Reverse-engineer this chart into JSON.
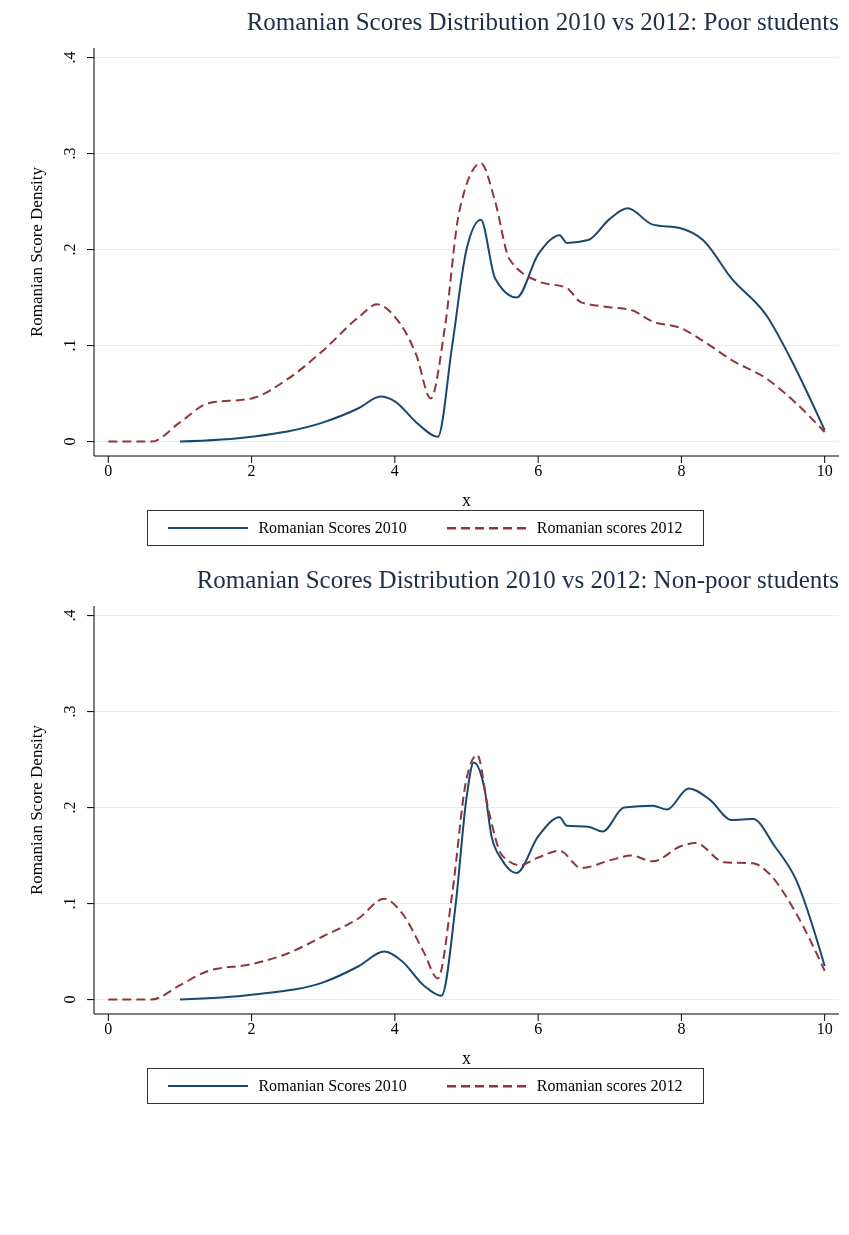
{
  "chart_data": [
    {
      "type": "line",
      "title": "Romanian Scores Distribution 2010 vs 2012: Poor students",
      "xlabel": "x",
      "ylabel": "Romanian Score Density",
      "xlim": [
        -0.2,
        10.2
      ],
      "xticks": [
        0,
        2,
        4,
        6,
        8,
        10
      ],
      "ylim": [
        -0.015,
        0.41
      ],
      "yticks": [
        0,
        {
          "value": 0.1,
          "label": ".1"
        },
        {
          "value": 0.2,
          "label": ".2"
        },
        {
          "value": 0.3,
          "label": ".3"
        },
        {
          "value": 0.4,
          "label": ".4"
        }
      ],
      "grid": "y",
      "legend": "bottom",
      "series": [
        {
          "name": "Romanian Scores 2010",
          "color": "#1a476f",
          "line_style": "solid",
          "x": [
            1,
            2,
            3,
            3.5,
            3.8,
            4,
            4.3,
            4.6,
            4.8,
            5,
            5.2,
            5.4,
            5.7,
            6,
            6.3,
            6.4,
            6.7,
            7,
            7.25,
            7.6,
            8,
            8.3,
            8.7,
            9.2,
            9.5,
            10
          ],
          "values": [
            0,
            0.005,
            0.02,
            0.035,
            0.047,
            0.042,
            0.02,
            0.005,
            0.1,
            0.2,
            0.231,
            0.17,
            0.15,
            0.195,
            0.215,
            0.207,
            0.21,
            0.232,
            0.243,
            0.226,
            0.222,
            0.21,
            0.17,
            0.13,
            0.09,
            0.012
          ]
        },
        {
          "name": "Romanian scores 2012",
          "color": "#90353b",
          "line_style": "dashed",
          "x": [
            0,
            0.6,
            1,
            1.4,
            2,
            2.5,
            3,
            3.5,
            3.75,
            4,
            4.3,
            4.5,
            4.7,
            4.9,
            5.2,
            5.4,
            5.6,
            6,
            6.4,
            6.6,
            7,
            7.3,
            7.6,
            8,
            8.3,
            8.7,
            9.2,
            9.6,
            10
          ],
          "values": [
            0,
            0,
            0.02,
            0.04,
            0.045,
            0.065,
            0.095,
            0.13,
            0.143,
            0.13,
            0.09,
            0.045,
            0.12,
            0.24,
            0.29,
            0.25,
            0.19,
            0.167,
            0.16,
            0.145,
            0.14,
            0.137,
            0.125,
            0.118,
            0.105,
            0.085,
            0.065,
            0.04,
            0.01
          ]
        }
      ]
    },
    {
      "type": "line",
      "title": "Romanian Scores Distribution 2010 vs 2012: Non-poor students",
      "xlabel": "x",
      "ylabel": "Romanian Score Density",
      "xlim": [
        -0.2,
        10.2
      ],
      "xticks": [
        0,
        2,
        4,
        6,
        8,
        10
      ],
      "ylim": [
        -0.015,
        0.41
      ],
      "yticks": [
        0,
        {
          "value": 0.1,
          "label": ".1"
        },
        {
          "value": 0.2,
          "label": ".2"
        },
        {
          "value": 0.3,
          "label": ".3"
        },
        {
          "value": 0.4,
          "label": ".4"
        }
      ],
      "grid": "y",
      "legend": "bottom",
      "series": [
        {
          "name": "Romanian Scores 2010",
          "color": "#1a476f",
          "line_style": "solid",
          "x": [
            1,
            2,
            3,
            3.5,
            3.85,
            4.1,
            4.4,
            4.65,
            4.85,
            5,
            5.1,
            5.25,
            5.35,
            5.5,
            5.7,
            6,
            6.3,
            6.4,
            6.7,
            6.9,
            7.2,
            7.6,
            7.8,
            8.1,
            8.4,
            8.7,
            9,
            9.3,
            9.6,
            10
          ],
          "values": [
            0,
            0.005,
            0.018,
            0.035,
            0.05,
            0.04,
            0.015,
            0.004,
            0.1,
            0.21,
            0.247,
            0.22,
            0.17,
            0.145,
            0.132,
            0.17,
            0.19,
            0.181,
            0.18,
            0.175,
            0.2,
            0.202,
            0.198,
            0.22,
            0.208,
            0.187,
            0.188,
            0.16,
            0.125,
            0.035
          ]
        },
        {
          "name": "Romanian scores 2012",
          "color": "#90353b",
          "line_style": "dashed",
          "x": [
            0,
            0.6,
            1,
            1.4,
            2,
            2.5,
            3,
            3.5,
            3.85,
            4.1,
            4.4,
            4.6,
            4.8,
            5,
            5.15,
            5.3,
            5.5,
            5.75,
            6,
            6.3,
            6.6,
            7,
            7.3,
            7.6,
            8,
            8.2,
            8.6,
            9,
            9.2,
            9.6,
            10
          ],
          "values": [
            0,
            0,
            0.015,
            0.03,
            0.037,
            0.048,
            0.066,
            0.085,
            0.105,
            0.09,
            0.05,
            0.022,
            0.11,
            0.23,
            0.255,
            0.2,
            0.15,
            0.14,
            0.148,
            0.155,
            0.137,
            0.145,
            0.15,
            0.144,
            0.16,
            0.163,
            0.143,
            0.142,
            0.133,
            0.09,
            0.03
          ]
        }
      ]
    }
  ]
}
